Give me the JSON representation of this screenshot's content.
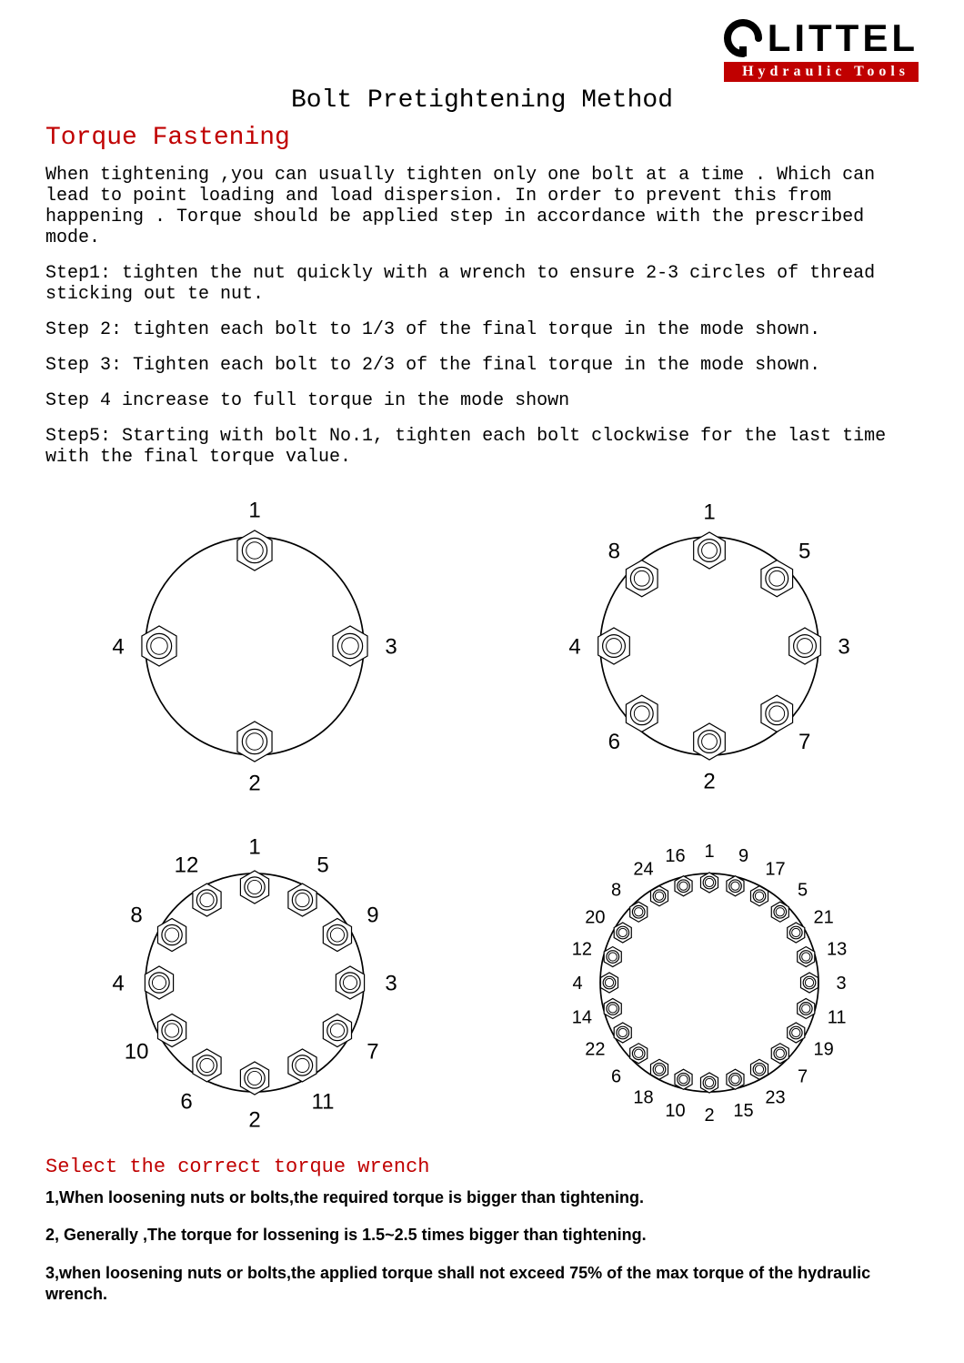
{
  "logo": {
    "brand": "LITTEL",
    "tagline": "Hydraulic   Tools"
  },
  "main_title": "Bolt Pretightening Method",
  "section1_title": "Torque Fastening",
  "intro": "When tightening ,you can usually tighten only one bolt at a time . Which can lead to point loading and load dispersion. In order to prevent this from happening . Torque  should be applied step in accordance with the prescribed mode.",
  "steps": {
    "s1": "Step1: tighten the nut quickly with a wrench to ensure 2-3 circles of thread sticking out te nut.",
    "s2": "Step 2: tighten each bolt to 1/3 of the final torque in the mode shown.",
    "s3": "Step 3:  Tighten each bolt to 2/3 of the final torque in the mode shown.",
    "s4": "Step 4  increase to full torque in the mode shown",
    "s5": "Step5: Starting with bolt No.1, tighten each bolt clockwise for the last time with the final torque value."
  },
  "section2_title": "Select the  correct torque wrench",
  "notes": {
    "n1": "1,When loosening nuts or bolts,the required torque is bigger than tightening.",
    "n2": "2, Generally ,The torque for lossening is 1.5~2.5 times bigger than tightening.",
    "n3": "3,when loosening nuts or bolts,the applied torque shall not exceed 75% of the max torque of the hydraulic wrench."
  },
  "flanges": {
    "f4": {
      "type": "flange-diagram",
      "bolt_count": 4,
      "flange_radius": 120,
      "bolt_circle_radius": 105,
      "bolt_size": 22,
      "label_radius": 150,
      "label_fontsize": 24,
      "stroke": "#000000",
      "stroke_width": 1.2,
      "bolts": [
        {
          "angle": 90,
          "label": "1"
        },
        {
          "angle": 270,
          "label": "2"
        },
        {
          "angle": 0,
          "label": "3"
        },
        {
          "angle": 180,
          "label": "4"
        }
      ]
    },
    "f8": {
      "type": "flange-diagram",
      "bolt_count": 8,
      "flange_radius": 120,
      "bolt_circle_radius": 105,
      "bolt_size": 20,
      "label_radius": 148,
      "label_fontsize": 24,
      "stroke": "#000000",
      "stroke_width": 1.2,
      "bolts": [
        {
          "angle": 90,
          "label": "1"
        },
        {
          "angle": 270,
          "label": "2"
        },
        {
          "angle": 0,
          "label": "3"
        },
        {
          "angle": 180,
          "label": "4"
        },
        {
          "angle": 45,
          "label": "5"
        },
        {
          "angle": 225,
          "label": "6"
        },
        {
          "angle": 315,
          "label": "7"
        },
        {
          "angle": 135,
          "label": "8"
        }
      ]
    },
    "f12": {
      "type": "flange-diagram",
      "bolt_count": 12,
      "flange_radius": 120,
      "bolt_circle_radius": 105,
      "bolt_size": 18,
      "label_radius": 150,
      "label_fontsize": 24,
      "stroke": "#000000",
      "stroke_width": 1.2,
      "bolts": [
        {
          "angle": 90,
          "label": "1"
        },
        {
          "angle": 270,
          "label": "2"
        },
        {
          "angle": 0,
          "label": "3"
        },
        {
          "angle": 180,
          "label": "4"
        },
        {
          "angle": 60,
          "label": "5"
        },
        {
          "angle": 240,
          "label": "6"
        },
        {
          "angle": 330,
          "label": "7"
        },
        {
          "angle": 150,
          "label": "8"
        },
        {
          "angle": 30,
          "label": "9"
        },
        {
          "angle": 210,
          "label": "10"
        },
        {
          "angle": 300,
          "label": "11"
        },
        {
          "angle": 120,
          "label": "12"
        }
      ]
    },
    "f24": {
      "type": "flange-diagram",
      "bolt_count": 24,
      "flange_radius": 120,
      "bolt_circle_radius": 110,
      "bolt_size": 11,
      "label_radius": 145,
      "label_fontsize": 20,
      "stroke": "#000000",
      "stroke_width": 1.2,
      "bolts": [
        {
          "angle": 90,
          "label": "1"
        },
        {
          "angle": 270,
          "label": "2"
        },
        {
          "angle": 0,
          "label": "3"
        },
        {
          "angle": 180,
          "label": "4"
        },
        {
          "angle": 45,
          "label": "5"
        },
        {
          "angle": 225,
          "label": "6"
        },
        {
          "angle": 315,
          "label": "7"
        },
        {
          "angle": 135,
          "label": "8"
        },
        {
          "angle": 75,
          "label": "9"
        },
        {
          "angle": 255,
          "label": "10"
        },
        {
          "angle": 345,
          "label": "11"
        },
        {
          "angle": 165,
          "label": "12"
        },
        {
          "angle": 15,
          "label": "13"
        },
        {
          "angle": 195,
          "label": "14"
        },
        {
          "angle": 285,
          "label": "15"
        },
        {
          "angle": 105,
          "label": "16"
        },
        {
          "angle": 60,
          "label": "17"
        },
        {
          "angle": 240,
          "label": "18"
        },
        {
          "angle": 330,
          "label": "19"
        },
        {
          "angle": 150,
          "label": "20"
        },
        {
          "angle": 30,
          "label": "21"
        },
        {
          "angle": 210,
          "label": "22"
        },
        {
          "angle": 300,
          "label": "23"
        },
        {
          "angle": 120,
          "label": "24"
        }
      ]
    }
  }
}
